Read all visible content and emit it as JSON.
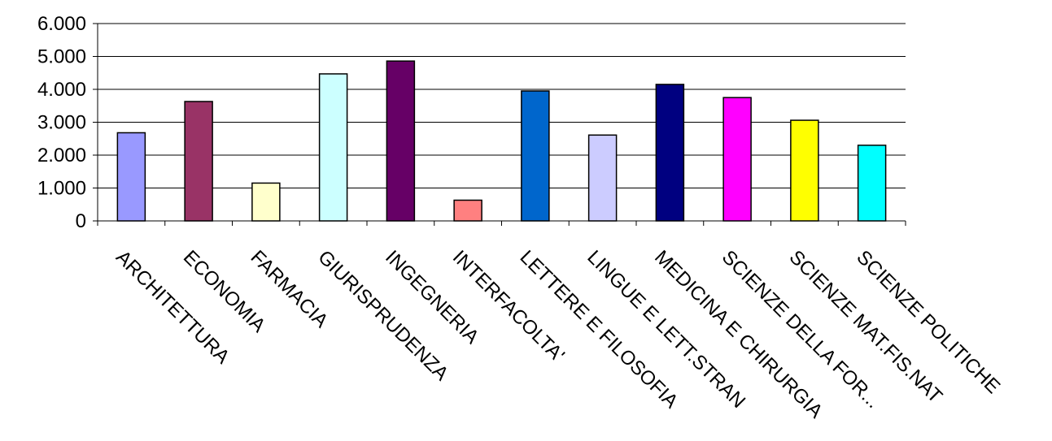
{
  "chart_data": {
    "type": "bar",
    "title": "",
    "xlabel": "",
    "ylabel": "",
    "ylim": [
      0,
      6000
    ],
    "yticks": [
      0,
      1000,
      2000,
      3000,
      4000,
      5000,
      6000
    ],
    "ytick_labels": [
      "0",
      "1.000",
      "2.000",
      "3.000",
      "4.000",
      "5.000",
      "6.000"
    ],
    "grid": "horizontal",
    "legend": "none",
    "categories": [
      "ARCHITETTURA",
      "ECONOMIA",
      "FARMACIA",
      "GIURISPRUDENZA",
      "INGEGNERIA",
      "INTERFACOLTA'",
      "LETTERE E FILOSOFIA",
      "LINGUE E LETT.STRAN",
      "MEDICINA E CHIRURGIA",
      "SCIENZE DELLA FOR...",
      "SCIENZE MAT.FIS.NAT",
      "SCIENZE POLITICHE"
    ],
    "values": [
      2680,
      3630,
      1150,
      4470,
      4860,
      630,
      3950,
      2610,
      4150,
      3750,
      3060,
      2300
    ],
    "colors": [
      "#9999ff",
      "#993366",
      "#ffffcc",
      "#ccffff",
      "#660066",
      "#ff8080",
      "#0066cc",
      "#ccccff",
      "#000080",
      "#ff00ff",
      "#ffff00",
      "#00ffff"
    ]
  }
}
